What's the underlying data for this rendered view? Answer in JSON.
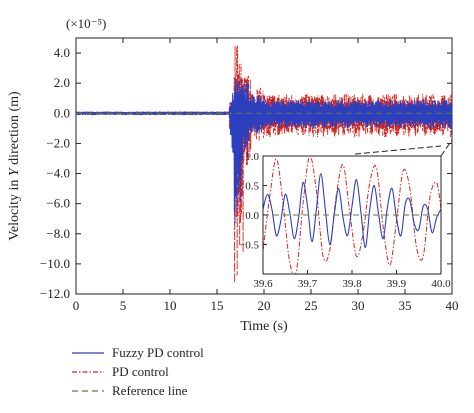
{
  "chart_data": {
    "type": "line",
    "xlabel": "Time (s)",
    "ylabel": "Velocity in Y direction (m)",
    "ylabel_italic_word": "Y",
    "y_multiplier_label": "(×10⁻⁵)",
    "xlim": [
      0,
      40
    ],
    "ylim": [
      -12.0,
      5.0
    ],
    "x_ticks": [
      "0",
      "5",
      "10",
      "15",
      "20",
      "25",
      "30",
      "35",
      "40"
    ],
    "x_tick_values": [
      0,
      5,
      10,
      15,
      20,
      25,
      30,
      35,
      40
    ],
    "y_ticks": [
      "4.0",
      "2.0",
      "0.0",
      "−2.0",
      "−4.0",
      "−6.0",
      "−8.0",
      "−10.0",
      "−12.0"
    ],
    "y_tick_values": [
      4,
      2,
      0,
      -2,
      -4,
      -6,
      -8,
      -10,
      -12
    ],
    "grid": false,
    "legend_position": "bottom-left, below plot",
    "series": [
      {
        "name": "Fuzzy PD control",
        "color": "#2b3fbf",
        "style": "solid",
        "approx_envelope": [
          {
            "t": 0,
            "amp": 0.1
          },
          {
            "t": 16.5,
            "amp": 0.3
          },
          {
            "t": 17,
            "amp_high": 2.5,
            "amp_low": -7.5
          },
          {
            "t": 18,
            "amp_high": 2.2,
            "amp_low": -3.0
          },
          {
            "t": 20,
            "amp": 1.0
          },
          {
            "t": 40,
            "amp": 0.7
          }
        ]
      },
      {
        "name": "PD control",
        "color": "#d9251c",
        "style": "dash-dot",
        "approx_envelope": [
          {
            "t": 0,
            "amp": 0.1
          },
          {
            "t": 16.5,
            "amp": 0.3
          },
          {
            "t": 17.5,
            "amp_high": 4.6,
            "amp_low": -11.5
          },
          {
            "t": 20,
            "amp": 1.6
          },
          {
            "t": 40,
            "amp": 1.2
          }
        ]
      },
      {
        "name": "Reference line",
        "color": "#6b7a2a",
        "style": "dashed",
        "value": 0
      }
    ],
    "inset": {
      "xlim": [
        39.6,
        40.0
      ],
      "ylim": [
        -1.0,
        1.0
      ],
      "x_ticks": [
        "39.6",
        "39.7",
        "39.8",
        "39.9",
        "40.0"
      ],
      "x_tick_values": [
        39.6,
        39.7,
        39.8,
        39.9,
        40.0
      ],
      "y_ticks": [
        "1.0",
        "0.5",
        "0.0",
        "−0.5"
      ],
      "y_tick_values": [
        1.0,
        0.5,
        0.0,
        -0.5
      ],
      "fuzzy_points": [
        [
          39.6,
          0.1
        ],
        [
          39.61,
          0.35
        ],
        [
          39.62,
          0.1
        ],
        [
          39.63,
          -0.35
        ],
        [
          39.64,
          -0.1
        ],
        [
          39.65,
          0.35
        ],
        [
          39.66,
          0.05
        ],
        [
          39.67,
          -0.4
        ],
        [
          39.68,
          -0.05
        ],
        [
          39.69,
          0.55
        ],
        [
          39.7,
          0.15
        ],
        [
          39.71,
          -0.45
        ],
        [
          39.72,
          0.1
        ],
        [
          39.73,
          0.7
        ],
        [
          39.74,
          0.1
        ],
        [
          39.75,
          -0.5
        ],
        [
          39.76,
          0.0
        ],
        [
          39.77,
          0.45
        ],
        [
          39.78,
          -0.05
        ],
        [
          39.79,
          -0.35
        ],
        [
          39.8,
          0.15
        ],
        [
          39.81,
          0.6
        ],
        [
          39.82,
          0.05
        ],
        [
          39.83,
          -0.55
        ],
        [
          39.84,
          0.1
        ],
        [
          39.85,
          0.5
        ],
        [
          39.86,
          0.0
        ],
        [
          39.87,
          -0.4
        ],
        [
          39.88,
          0.15
        ],
        [
          39.89,
          0.45
        ],
        [
          39.9,
          -0.05
        ],
        [
          39.91,
          -0.35
        ],
        [
          39.92,
          0.2
        ],
        [
          39.93,
          0.25
        ],
        [
          39.94,
          -0.15
        ],
        [
          39.95,
          -0.25
        ],
        [
          39.96,
          0.15
        ],
        [
          39.97,
          0.1
        ],
        [
          39.98,
          -0.3
        ],
        [
          39.99,
          -0.05
        ],
        [
          40.0,
          0.1
        ]
      ],
      "pd_points": [
        [
          39.6,
          -0.6
        ],
        [
          39.615,
          0.3
        ],
        [
          39.63,
          0.95
        ],
        [
          39.645,
          0.2
        ],
        [
          39.66,
          -0.8
        ],
        [
          39.675,
          -0.95
        ],
        [
          39.69,
          0.2
        ],
        [
          39.705,
          1.0
        ],
        [
          39.72,
          0.4
        ],
        [
          39.735,
          -0.7
        ],
        [
          39.75,
          -0.6
        ],
        [
          39.765,
          0.35
        ],
        [
          39.78,
          0.85
        ],
        [
          39.795,
          0.05
        ],
        [
          39.81,
          -0.7
        ],
        [
          39.825,
          -0.3
        ],
        [
          39.84,
          0.55
        ],
        [
          39.855,
          0.8
        ],
        [
          39.87,
          -0.2
        ],
        [
          39.885,
          -0.85
        ],
        [
          39.9,
          -0.1
        ],
        [
          39.915,
          0.75
        ],
        [
          39.93,
          0.45
        ],
        [
          39.945,
          -0.55
        ],
        [
          39.96,
          -0.7
        ],
        [
          39.975,
          0.3
        ],
        [
          39.99,
          0.55
        ],
        [
          40.0,
          0.1
        ]
      ]
    }
  }
}
